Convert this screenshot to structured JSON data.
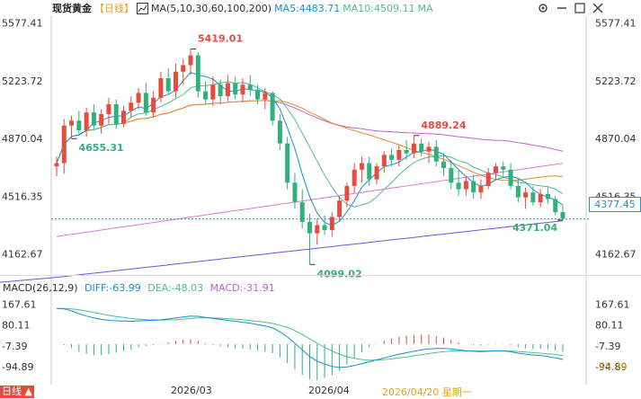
{
  "header": {
    "title": "现货黄金",
    "period": "【日线】",
    "ma_label": "MA(5,10,30,60,100,200)",
    "ma5": "MA5:4483.71",
    "ma10": "MA10:4509.11",
    "ma_more": "MA"
  },
  "macd_header": {
    "label": "MACD(26,12,9)",
    "diff": "DIFF:-63.99",
    "dea": "DEA:-48.03",
    "macd": "MACD:-31.91"
  },
  "price_tag": "4377.45",
  "date_label": "2026/04/20 星期一",
  "bottom_corner": "日线 ▲",
  "x_ticks": [
    "2026/03",
    "2026/04"
  ],
  "colors": {
    "up": "#e84a3c",
    "down": "#2fb07d",
    "ma5": "#1a8fd6",
    "ma10": "#4cbf8c",
    "ma30": "#e8892a",
    "ma60": "#c85fd6",
    "ma100": "#7b4fd6"
  },
  "chart_data": [
    {
      "type": "candlestick",
      "y_ticks": [
        "5577.41",
        "5223.72",
        "4870.04",
        "4516.35",
        "4162.67"
      ],
      "ylim": [
        4040,
        5620
      ],
      "annotations": [
        {
          "label": "5419.01",
          "type": "high"
        },
        {
          "label": "4889.24",
          "type": "high"
        },
        {
          "label": "4655.31",
          "type": "low"
        },
        {
          "label": "4099.02",
          "type": "low"
        },
        {
          "label": "4371.04",
          "type": "low"
        }
      ],
      "reference_line": 4377.45,
      "ohlc": [
        [
          4700,
          4760,
          4640,
          4720
        ],
        [
          4720,
          4990,
          4655,
          4950
        ],
        [
          4950,
          5010,
          4870,
          4980
        ],
        [
          4980,
          5040,
          4900,
          4920
        ],
        [
          4920,
          5060,
          4880,
          5030
        ],
        [
          5030,
          5080,
          4930,
          4950
        ],
        [
          4950,
          5050,
          4900,
          5020
        ],
        [
          5020,
          5120,
          4960,
          5080
        ],
        [
          5080,
          5110,
          4930,
          4960
        ],
        [
          4960,
          5070,
          4940,
          5040
        ],
        [
          5040,
          5130,
          5000,
          5090
        ],
        [
          5090,
          5180,
          5050,
          5150
        ],
        [
          5150,
          5210,
          5010,
          5030
        ],
        [
          5030,
          5160,
          5000,
          5120
        ],
        [
          5120,
          5280,
          5090,
          5240
        ],
        [
          5240,
          5300,
          5140,
          5160
        ],
        [
          5160,
          5330,
          5120,
          5280
        ],
        [
          5280,
          5360,
          5200,
          5320
        ],
        [
          5320,
          5419,
          5260,
          5380
        ],
        [
          5380,
          5400,
          5120,
          5160
        ],
        [
          5160,
          5220,
          5080,
          5110
        ],
        [
          5110,
          5250,
          5070,
          5200
        ],
        [
          5200,
          5230,
          5080,
          5130
        ],
        [
          5130,
          5260,
          5100,
          5210
        ],
        [
          5210,
          5250,
          5110,
          5140
        ],
        [
          5140,
          5240,
          5090,
          5200
        ],
        [
          5200,
          5260,
          5130,
          5170
        ],
        [
          5170,
          5200,
          5080,
          5110
        ],
        [
          5110,
          5180,
          5050,
          5150
        ],
        [
          5150,
          5160,
          4950,
          4980
        ],
        [
          4980,
          5020,
          4800,
          4840
        ],
        [
          4840,
          4880,
          4560,
          4600
        ],
        [
          4600,
          4660,
          4440,
          4480
        ],
        [
          4480,
          4560,
          4320,
          4360
        ],
        [
          4360,
          4410,
          4099,
          4290
        ],
        [
          4290,
          4380,
          4220,
          4340
        ],
        [
          4340,
          4400,
          4280,
          4310
        ],
        [
          4310,
          4420,
          4270,
          4390
        ],
        [
          4390,
          4520,
          4360,
          4490
        ],
        [
          4490,
          4600,
          4450,
          4580
        ],
        [
          4580,
          4720,
          4540,
          4680
        ],
        [
          4680,
          4760,
          4600,
          4720
        ],
        [
          4720,
          4760,
          4580,
          4620
        ],
        [
          4620,
          4720,
          4590,
          4700
        ],
        [
          4700,
          4790,
          4660,
          4770
        ],
        [
          4770,
          4810,
          4700,
          4740
        ],
        [
          4740,
          4830,
          4700,
          4800
        ],
        [
          4800,
          4860,
          4740,
          4780
        ],
        [
          4780,
          4889,
          4750,
          4840
        ],
        [
          4840,
          4870,
          4760,
          4790
        ],
        [
          4790,
          4850,
          4720,
          4820
        ],
        [
          4820,
          4860,
          4700,
          4730
        ],
        [
          4730,
          4780,
          4640,
          4690
        ],
        [
          4690,
          4740,
          4560,
          4600
        ],
        [
          4600,
          4680,
          4520,
          4560
        ],
        [
          4560,
          4640,
          4520,
          4610
        ],
        [
          4610,
          4650,
          4500,
          4540
        ],
        [
          4540,
          4620,
          4500,
          4580
        ],
        [
          4580,
          4690,
          4560,
          4660
        ],
        [
          4660,
          4720,
          4620,
          4700
        ],
        [
          4700,
          4730,
          4640,
          4680
        ],
        [
          4680,
          4720,
          4560,
          4580
        ],
        [
          4580,
          4630,
          4480,
          4510
        ],
        [
          4510,
          4570,
          4440,
          4540
        ],
        [
          4540,
          4580,
          4460,
          4480
        ],
        [
          4480,
          4560,
          4450,
          4530
        ],
        [
          4530,
          4570,
          4470,
          4500
        ],
        [
          4500,
          4520,
          4400,
          4420
        ],
        [
          4420,
          4460,
          4371,
          4380
        ]
      ],
      "macd": {
        "y_ticks": [
          "167.61",
          "80.11",
          "-7.39",
          "-94.89"
        ],
        "right_label": "-55.79",
        "ylim": [
          -140,
          200
        ],
        "diff": [
          150,
          148,
          140,
          128,
          118,
          110,
          104,
          100,
          98,
          97,
          96,
          98,
          99,
          100,
          102,
          106,
          110,
          114,
          118,
          117,
          112,
          108,
          104,
          100,
          96,
          92,
          88,
          82,
          76,
          68,
          52,
          30,
          4,
          -24,
          -52,
          -72,
          -84,
          -94,
          -98,
          -96,
          -90,
          -82,
          -74,
          -66,
          -58,
          -50,
          -42,
          -36,
          -30,
          -24,
          -20,
          -18,
          -18,
          -20,
          -24,
          -28,
          -30,
          -32,
          -30,
          -28,
          -28,
          -32,
          -38,
          -42,
          -46,
          -48,
          -52,
          -58,
          -64
        ],
        "dea": [
          150,
          150,
          148,
          144,
          139,
          133,
          127,
          121,
          116,
          112,
          108,
          105,
          103,
          102,
          101,
          102,
          103,
          105,
          108,
          110,
          110,
          110,
          109,
          107,
          105,
          102,
          99,
          96,
          92,
          87,
          80,
          70,
          57,
          41,
          22,
          4,
          -13,
          -29,
          -42,
          -53,
          -60,
          -65,
          -67,
          -67,
          -65,
          -62,
          -58,
          -54,
          -49,
          -44,
          -40,
          -35,
          -32,
          -29,
          -28,
          -28,
          -28,
          -29,
          -29,
          -29,
          -29,
          -29,
          -31,
          -33,
          -36,
          -38,
          -41,
          -44,
          -48
        ],
        "hist": [
          0,
          -4,
          -16,
          -32,
          -42,
          -46,
          -46,
          -42,
          -36,
          -30,
          -24,
          -14,
          -8,
          -4,
          2,
          8,
          14,
          18,
          20,
          14,
          4,
          -4,
          -10,
          -14,
          -18,
          -20,
          -22,
          -28,
          -32,
          -38,
          -56,
          -80,
          -106,
          -130,
          -148,
          -152,
          -142,
          -130,
          -112,
          -86,
          -60,
          -34,
          -14,
          2,
          14,
          24,
          32,
          36,
          38,
          40,
          40,
          34,
          28,
          18,
          8,
          0,
          -4,
          -6,
          -2,
          2,
          2,
          -6,
          -14,
          -18,
          -20,
          -20,
          -22,
          -28,
          -32
        ]
      }
    }
  ]
}
